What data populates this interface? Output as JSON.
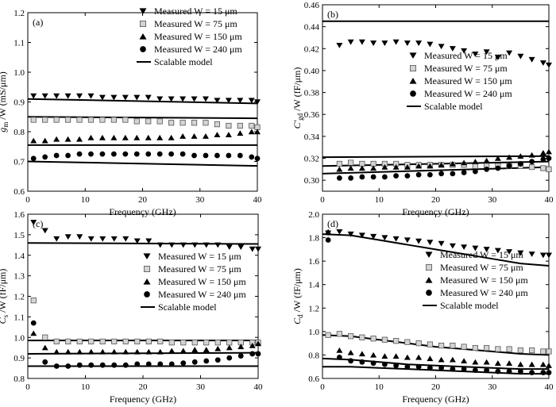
{
  "chart_data": [
    {
      "type": "scatter",
      "panel_label": "(a)",
      "xlabel": "Frequency (GHz)",
      "ylabel": {
        "prefix": "g",
        "sub": "m",
        "suffix": " /W (mS/μm)"
      },
      "xlim": [
        0,
        40
      ],
      "ylim": [
        0.6,
        1.2
      ],
      "xticks": [
        "0",
        "10",
        "20",
        "30",
        "40"
      ],
      "yticks": [
        "0.6",
        "0.7",
        "0.8",
        "0.9",
        "1.0",
        "1.1",
        "1.2"
      ],
      "legend_position": "top-right",
      "x": [
        1,
        3,
        5,
        7,
        9,
        11,
        13,
        15,
        17,
        19,
        21,
        23,
        25,
        27,
        29,
        31,
        33,
        35,
        37,
        39,
        40
      ],
      "series": [
        {
          "name": "Measured W = 15 μm",
          "marker": "triangle-down",
          "values": [
            0.92,
            0.92,
            0.92,
            0.92,
            0.92,
            0.92,
            0.915,
            0.915,
            0.915,
            0.915,
            0.915,
            0.91,
            0.91,
            0.91,
            0.91,
            0.91,
            0.905,
            0.905,
            0.905,
            0.905,
            0.9
          ]
        },
        {
          "name": "Measured W = 75 μm",
          "marker": "square",
          "values": [
            0.84,
            0.84,
            0.84,
            0.84,
            0.84,
            0.84,
            0.84,
            0.84,
            0.84,
            0.835,
            0.835,
            0.835,
            0.83,
            0.83,
            0.83,
            0.83,
            0.825,
            0.82,
            0.82,
            0.82,
            0.815
          ]
        },
        {
          "name": "Measured W = 150 μm",
          "marker": "triangle-up",
          "values": [
            0.77,
            0.77,
            0.775,
            0.775,
            0.775,
            0.78,
            0.78,
            0.78,
            0.78,
            0.78,
            0.78,
            0.78,
            0.78,
            0.785,
            0.785,
            0.785,
            0.79,
            0.79,
            0.795,
            0.8,
            0.8
          ]
        },
        {
          "name": "Measured W = 240 μm",
          "marker": "circle",
          "values": [
            0.71,
            0.715,
            0.72,
            0.72,
            0.725,
            0.725,
            0.725,
            0.725,
            0.725,
            0.725,
            0.725,
            0.725,
            0.725,
            0.725,
            0.72,
            0.72,
            0.72,
            0.72,
            0.72,
            0.715,
            0.71
          ]
        }
      ],
      "model_name": "Scalable model",
      "model_lines": [
        {
          "x": [
            0,
            40
          ],
          "y": [
            0.91,
            0.895
          ]
        },
        {
          "x": [
            0,
            40
          ],
          "y": [
            0.85,
            0.845
          ]
        },
        {
          "x": [
            0,
            40
          ],
          "y": [
            0.755,
            0.755
          ]
        },
        {
          "x": [
            0,
            40
          ],
          "y": [
            0.7,
            0.685
          ]
        }
      ]
    },
    {
      "type": "scatter",
      "panel_label": "(b)",
      "xlabel": "Frequency (GHz)",
      "ylabel": {
        "prefix": "C'",
        "sub": "gd",
        "suffix": " /W (fF/μm)"
      },
      "xlim": [
        0,
        40
      ],
      "ylim": [
        0.29,
        0.46
      ],
      "xticks": [
        "0",
        "10",
        "20",
        "30",
        "40"
      ],
      "yticks": [
        "0.30",
        "0.32",
        "0.34",
        "0.36",
        "0.38",
        "0.40",
        "0.42",
        "0.44",
        "0.46"
      ],
      "legend_position": "center-right",
      "x": [
        3,
        5,
        7,
        9,
        11,
        13,
        15,
        17,
        19,
        21,
        23,
        25,
        27,
        29,
        31,
        33,
        35,
        37,
        39,
        40
      ],
      "series": [
        {
          "name": "Measured W = 15 μm",
          "marker": "triangle-down",
          "values": [
            0.423,
            0.426,
            0.426,
            0.425,
            0.425,
            0.426,
            0.425,
            0.425,
            0.424,
            0.422,
            0.42,
            0.418,
            0.415,
            0.417,
            0.412,
            0.416,
            0.413,
            0.41,
            0.407,
            0.405
          ]
        },
        {
          "name": "Measured W = 75 μm",
          "marker": "square",
          "values": [
            0.315,
            0.316,
            0.315,
            0.315,
            0.315,
            0.315,
            0.314,
            0.314,
            0.314,
            0.314,
            0.314,
            0.314,
            0.313,
            0.313,
            0.313,
            0.313,
            0.313,
            0.312,
            0.311,
            0.31
          ]
        },
        {
          "name": "Measured W = 150 μm",
          "marker": "triangle-up",
          "values": [
            0.31,
            0.311,
            0.311,
            0.311,
            0.312,
            0.312,
            0.312,
            0.313,
            0.313,
            0.314,
            0.315,
            0.316,
            0.317,
            0.318,
            0.32,
            0.321,
            0.322,
            0.323,
            0.325,
            0.326
          ]
        },
        {
          "name": "Measured W = 240 μm",
          "marker": "circle",
          "values": [
            0.302,
            0.302,
            0.303,
            0.303,
            0.303,
            0.304,
            0.304,
            0.305,
            0.305,
            0.306,
            0.306,
            0.307,
            0.308,
            0.31,
            0.311,
            0.313,
            0.315,
            0.317,
            0.319,
            0.32
          ]
        }
      ],
      "model_name": "Scalable model",
      "model_lines": [
        {
          "x": [
            0,
            40
          ],
          "y": [
            0.445,
            0.445
          ]
        },
        {
          "x": [
            0,
            40
          ],
          "y": [
            0.321,
            0.322
          ]
        },
        {
          "x": [
            0,
            40
          ],
          "y": [
            0.313,
            0.317
          ]
        },
        {
          "x": [
            0,
            40
          ],
          "y": [
            0.306,
            0.312
          ]
        }
      ]
    },
    {
      "type": "scatter",
      "panel_label": "(c)",
      "xlabel": "Frequency (GHz)",
      "ylabel": {
        "prefix": "C",
        "sub": "s",
        "suffix": " /W (fF/μm)"
      },
      "xlim": [
        0,
        40
      ],
      "ylim": [
        0.8,
        1.6
      ],
      "xticks": [
        "0",
        "10",
        "20",
        "30",
        "40"
      ],
      "yticks": [
        "0.8",
        "0.9",
        "1.0",
        "1.1",
        "1.2",
        "1.3",
        "1.4",
        "1.5",
        "1.6"
      ],
      "legend_position": "center-right",
      "x": [
        1,
        3,
        5,
        7,
        9,
        11,
        13,
        15,
        17,
        19,
        21,
        23,
        25,
        27,
        29,
        31,
        33,
        35,
        37,
        39,
        40
      ],
      "series": [
        {
          "name": "Measured W = 15 μm",
          "marker": "triangle-down",
          "values": [
            1.56,
            1.52,
            1.48,
            1.49,
            1.49,
            1.48,
            1.48,
            1.48,
            1.48,
            1.47,
            1.47,
            1.45,
            1.45,
            1.45,
            1.45,
            1.45,
            1.45,
            1.44,
            1.44,
            1.43,
            1.43
          ]
        },
        {
          "name": "Measured W = 75 μm",
          "marker": "square",
          "values": [
            1.18,
            1.0,
            0.98,
            0.98,
            0.98,
            0.98,
            0.98,
            0.98,
            0.98,
            0.98,
            0.98,
            0.98,
            0.975,
            0.975,
            0.975,
            0.975,
            0.975,
            0.975,
            0.975,
            0.975,
            0.975
          ]
        },
        {
          "name": "Measured W = 150 μm",
          "marker": "triangle-up",
          "values": [
            1.02,
            0.95,
            0.93,
            0.93,
            0.93,
            0.93,
            0.93,
            0.93,
            0.93,
            0.93,
            0.93,
            0.93,
            0.935,
            0.935,
            0.94,
            0.94,
            0.945,
            0.95,
            0.955,
            0.96,
            0.97
          ]
        },
        {
          "name": "Measured W = 240 μm",
          "marker": "circle",
          "values": [
            1.07,
            0.88,
            0.86,
            0.86,
            0.865,
            0.865,
            0.865,
            0.865,
            0.865,
            0.87,
            0.87,
            0.87,
            0.87,
            0.875,
            0.88,
            0.885,
            0.89,
            0.9,
            0.91,
            0.92,
            0.92
          ]
        }
      ],
      "model_name": "Scalable model",
      "model_lines": [
        {
          "x": [
            0,
            40
          ],
          "y": [
            1.46,
            1.455
          ]
        },
        {
          "x": [
            0,
            40
          ],
          "y": [
            0.985,
            0.985
          ]
        },
        {
          "x": [
            0,
            40
          ],
          "y": [
            0.92,
            0.925
          ]
        },
        {
          "x": [
            0,
            40
          ],
          "y": [
            0.86,
            0.86
          ]
        }
      ]
    },
    {
      "type": "scatter",
      "panel_label": "(d)",
      "xlabel": "Frequency (GHz)",
      "ylabel": {
        "prefix": "C",
        "sub": "d",
        "suffix": " /W (fF/μm)"
      },
      "xlim": [
        0,
        40
      ],
      "ylim": [
        0.6,
        2.0
      ],
      "xticks": [
        "0",
        "10",
        "20",
        "30",
        "40"
      ],
      "yticks": [
        "0.6",
        "0.8",
        "1.0",
        "1.2",
        "1.4",
        "1.6",
        "1.8",
        "2.0"
      ],
      "legend_position": "center-right",
      "x": [
        1,
        3,
        5,
        7,
        9,
        11,
        13,
        15,
        17,
        19,
        21,
        23,
        25,
        27,
        29,
        31,
        33,
        35,
        37,
        39,
        40
      ],
      "series": [
        {
          "name": "Measured W = 15 μm",
          "marker": "triangle-down",
          "values": [
            1.84,
            1.85,
            1.83,
            1.82,
            1.81,
            1.8,
            1.79,
            1.78,
            1.77,
            1.76,
            1.75,
            1.73,
            1.72,
            1.71,
            1.7,
            1.69,
            1.68,
            1.67,
            1.66,
            1.65,
            1.65
          ]
        },
        {
          "name": "Measured W = 75 μm",
          "marker": "square",
          "values": [
            0.97,
            0.98,
            0.96,
            0.95,
            0.94,
            0.93,
            0.92,
            0.91,
            0.9,
            0.89,
            0.88,
            0.88,
            0.87,
            0.86,
            0.86,
            0.85,
            0.85,
            0.84,
            0.84,
            0.83,
            0.83
          ]
        },
        {
          "name": "Measured W = 150 μm",
          "marker": "triangle-up",
          "values": [
            1.85,
            0.84,
            0.82,
            0.81,
            0.8,
            0.79,
            0.79,
            0.78,
            0.78,
            0.77,
            0.76,
            0.76,
            0.75,
            0.74,
            0.74,
            0.73,
            0.73,
            0.72,
            0.72,
            0.72,
            0.71
          ]
        },
        {
          "name": "Measured W = 240 μm",
          "marker": "circle",
          "values": [
            1.78,
            0.78,
            0.75,
            0.74,
            0.73,
            0.72,
            0.71,
            0.7,
            0.7,
            0.69,
            0.69,
            0.68,
            0.68,
            0.67,
            0.67,
            0.66,
            0.66,
            0.66,
            0.65,
            0.65,
            0.65
          ]
        }
      ],
      "model_name": "Scalable model",
      "model_lines": [
        {
          "x": [
            0,
            5,
            10,
            15,
            20,
            25,
            30,
            35,
            40
          ],
          "y": [
            1.83,
            1.82,
            1.78,
            1.74,
            1.7,
            1.66,
            1.62,
            1.58,
            1.56
          ]
        },
        {
          "x": [
            0,
            5,
            10,
            15,
            20,
            25,
            30,
            35,
            40
          ],
          "y": [
            0.97,
            0.96,
            0.93,
            0.9,
            0.87,
            0.85,
            0.83,
            0.81,
            0.8
          ]
        },
        {
          "x": [
            0,
            5,
            10,
            15,
            20,
            25,
            30,
            35,
            40
          ],
          "y": [
            0.77,
            0.76,
            0.74,
            0.72,
            0.71,
            0.7,
            0.69,
            0.68,
            0.68
          ]
        },
        {
          "x": [
            0,
            5,
            10,
            15,
            20,
            25,
            30,
            35,
            40
          ],
          "y": [
            0.7,
            0.7,
            0.69,
            0.68,
            0.67,
            0.66,
            0.65,
            0.64,
            0.64
          ]
        }
      ]
    }
  ]
}
